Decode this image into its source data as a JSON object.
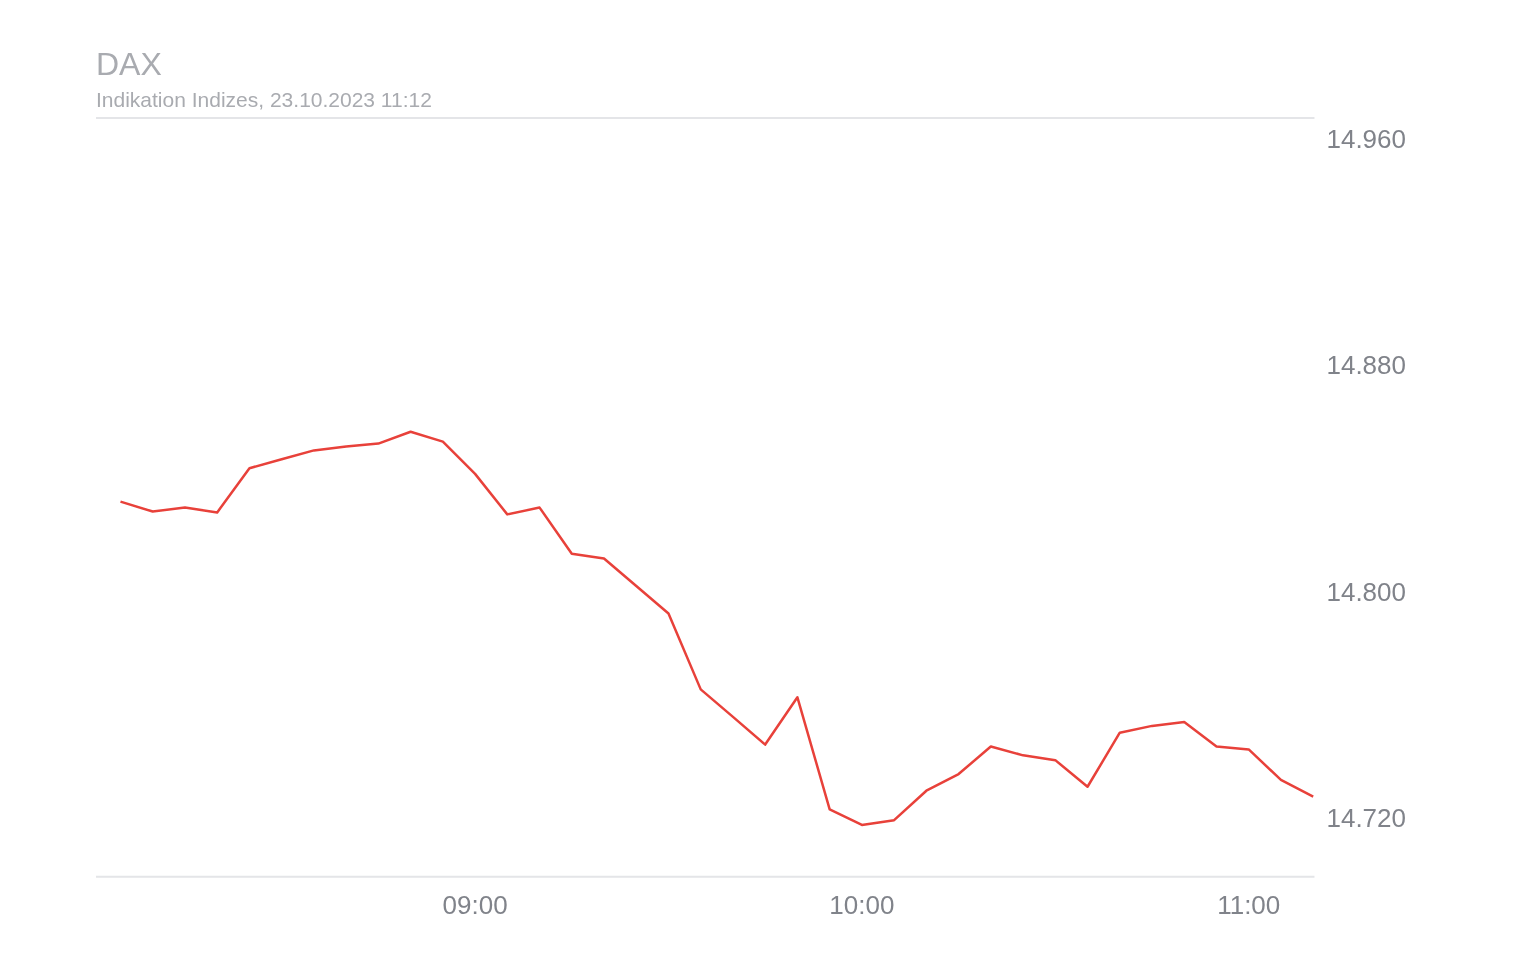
{
  "chart_data": {
    "type": "line",
    "title": "DAX",
    "subtitle": "Indikation Indizes, 23.10.2023 11:12",
    "x": [
      8.0833,
      8.1667,
      8.25,
      8.3333,
      8.4167,
      8.5,
      8.5833,
      8.6667,
      8.75,
      8.8333,
      8.9167,
      9.0,
      9.0833,
      9.1667,
      9.25,
      9.3333,
      9.4167,
      9.5,
      9.5833,
      9.6667,
      9.75,
      9.8333,
      9.9167,
      10.0,
      10.0833,
      10.1667,
      10.25,
      10.3333,
      10.4167,
      10.5,
      10.5833,
      10.6667,
      10.75,
      10.8333,
      10.9167,
      11.0,
      11.0833,
      11.1667
    ],
    "series": [
      {
        "color": "#e8413a",
        "values": [
          14832.5,
          14829,
          14830.4,
          14828.7,
          14844.3,
          14847.5,
          14850.6,
          14852,
          14853,
          14857.2,
          14853.7,
          14842.3,
          14828,
          14830.4,
          14814.1,
          14812.4,
          14802.7,
          14793,
          14766.2,
          14756.5,
          14746.7,
          14763.4,
          14723.8,
          14718.3,
          14720,
          14730.4,
          14736.3,
          14746,
          14742.9,
          14741.2,
          14731.8,
          14750.9,
          14753.3,
          14754.7,
          14746,
          14745,
          14734.2,
          14728.3
        ]
      }
    ],
    "xlim": [
      8.02,
      11.17
    ],
    "xticks": [
      {
        "value": 9,
        "label": "09:00"
      },
      {
        "value": 10,
        "label": "10:00"
      },
      {
        "value": 11,
        "label": "11:00"
      }
    ],
    "ylim": [
      14700,
      14968
    ],
    "yticks": [
      {
        "value": 14720,
        "label": "14.720"
      },
      {
        "value": 14800,
        "label": "14.800"
      },
      {
        "value": 14880,
        "label": "14.880"
      },
      {
        "value": 14960,
        "label": "14.960"
      }
    ],
    "grid": false,
    "legend": false,
    "marker": "none",
    "line_style": "solid"
  }
}
